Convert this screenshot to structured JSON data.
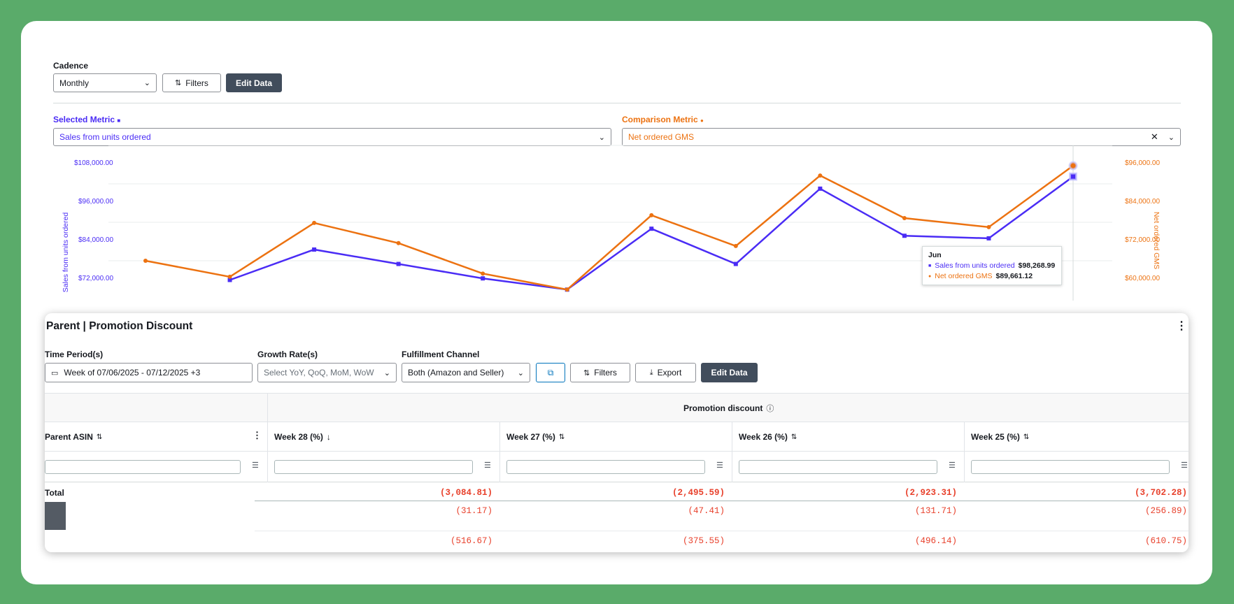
{
  "top": {
    "cadence_label": "Cadence",
    "cadence_value": "Monthly",
    "filters_label": "Filters",
    "edit_data_label": "Edit Data"
  },
  "metrics": {
    "selected_label": "Selected Metric",
    "selected_value": "Sales from units ordered",
    "comparison_label": "Comparison Metric",
    "comparison_value": "Net ordered GMS",
    "selected_color": "#4a2cf5",
    "comparison_color": "#ec7211"
  },
  "chart_data": {
    "type": "line",
    "ylabel": "Sales from units ordered",
    "y2label": "Net ordered GMS",
    "y_ticks": [
      "$108,000.00",
      "$96,000.00",
      "$84,000.00",
      "$72,000.00"
    ],
    "y2_ticks": [
      "$96,000.00",
      "$84,000.00",
      "$72,000.00",
      "$60,000.00"
    ],
    "ylim": [
      72000,
      108000
    ],
    "y2lim": [
      60000,
      96000
    ],
    "series": [
      {
        "name": "Sales from units ordered",
        "color": "#4a2cf5",
        "axis": "left",
        "marker": "square",
        "values": [
          null,
          66000,
          75500,
          71000,
          66500,
          63000,
          82000,
          71000,
          94500,
          79800,
          79000,
          98268.99
        ]
      },
      {
        "name": "Net ordered GMS",
        "color": "#ec7211",
        "axis": "right",
        "marker": "circle",
        "values": [
          60000,
          55000,
          71800,
          65500,
          56000,
          51000,
          74200,
          64600,
          86600,
          73300,
          70500,
          89661.12
        ]
      }
    ],
    "tooltip": {
      "title": "Jun",
      "rows": [
        {
          "label": "Sales from units ordered",
          "value": "$98,268.99"
        },
        {
          "label": "Net ordered GMS",
          "value": "$89,661.12"
        }
      ]
    }
  },
  "panel": {
    "title": "Parent | Promotion Discount",
    "time_period_label": "Time Period(s)",
    "time_period_value": "Week of 07/06/2025 - 07/12/2025 +3",
    "growth_label": "Growth Rate(s)",
    "growth_placeholder": "Select YoY, QoQ, MoM, WoW",
    "fulfillment_label": "Fulfillment Channel",
    "fulfillment_value": "Both (Amazon and Seller)",
    "filters_label": "Filters",
    "export_label": "Export",
    "edit_data_label": "Edit Data",
    "group_header": "Promotion discount",
    "columns": [
      "Parent ASIN",
      "Week 28 (%)",
      "Week 27 (%)",
      "Week 26 (%)",
      "Week 25 (%)"
    ],
    "rows": [
      {
        "label": "Total",
        "values": [
          "(3,084.81)",
          "(2,495.59)",
          "(2,923.31)",
          "(3,702.28)"
        ]
      },
      {
        "label": "",
        "values": [
          "(31.17)",
          "(47.41)",
          "(131.71)",
          "(256.89)"
        ]
      },
      {
        "label": "",
        "values": [
          "(516.67)",
          "(375.55)",
          "(496.14)",
          "(610.75)"
        ]
      }
    ]
  }
}
